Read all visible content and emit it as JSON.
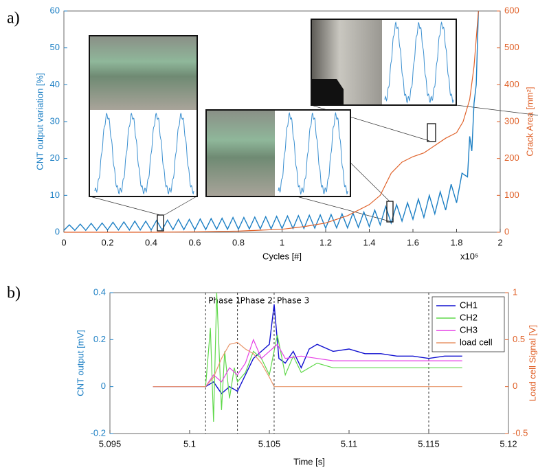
{
  "chart_data": [
    {
      "type": "line",
      "panel_label": "a)",
      "xlabel": "Cycles [#]",
      "ylabel": "CNT output variation [%]",
      "y2label": "Crack Area [mm²]",
      "x_multiplier": "x10⁵",
      "xlim": [
        0,
        2
      ],
      "xticks": [
        0,
        0.2,
        0.4,
        0.6,
        0.8,
        1,
        1.2,
        1.4,
        1.6,
        1.8,
        2
      ],
      "ylim": [
        0,
        60
      ],
      "yticks": [
        0,
        10,
        20,
        30,
        40,
        50,
        60
      ],
      "y2lim": [
        0,
        600
      ],
      "y2ticks": [
        0,
        100,
        200,
        300,
        400,
        500,
        600
      ],
      "series": [
        {
          "color": "#1c7fc4",
          "x": [
            0,
            0.025,
            0.05,
            0.075,
            0.1,
            0.125,
            0.15,
            0.175,
            0.2,
            0.225,
            0.25,
            0.275,
            0.3,
            0.325,
            0.35,
            0.375,
            0.4,
            0.425,
            0.45,
            0.475,
            0.5,
            0.525,
            0.55,
            0.575,
            0.6,
            0.625,
            0.65,
            0.675,
            0.7,
            0.725,
            0.75,
            0.775,
            0.8,
            0.825,
            0.85,
            0.875,
            0.9,
            0.925,
            0.95,
            0.975,
            1.0,
            1.025,
            1.05,
            1.075,
            1.1,
            1.125,
            1.15,
            1.175,
            1.2,
            1.225,
            1.25,
            1.275,
            1.3,
            1.325,
            1.35,
            1.375,
            1.4,
            1.425,
            1.45,
            1.475,
            1.5,
            1.525,
            1.55,
            1.575,
            1.6,
            1.625,
            1.65,
            1.675,
            1.7,
            1.725,
            1.75,
            1.775,
            1.8,
            1.825,
            1.85,
            1.86,
            1.87,
            1.88,
            1.89,
            1.9
          ],
          "values": [
            0.5,
            2,
            0.5,
            2.2,
            0.5,
            2.4,
            0.5,
            2.5,
            0.6,
            2.7,
            0.6,
            2.8,
            0.6,
            3,
            0.6,
            3,
            0.6,
            3.2,
            0.6,
            3.3,
            0.7,
            3.5,
            0.7,
            3.5,
            0.7,
            3.6,
            0.7,
            3.7,
            0.8,
            3.8,
            0.8,
            4,
            0.8,
            4,
            0.9,
            4.1,
            0.9,
            4.2,
            0.9,
            4.3,
            1,
            4.4,
            1,
            4.5,
            1,
            4.6,
            1.1,
            4.7,
            1.1,
            4.8,
            1.2,
            5,
            1.2,
            5.2,
            1.3,
            5.5,
            1.5,
            6,
            2,
            7,
            2.5,
            7.5,
            3,
            8,
            3.5,
            9,
            4,
            10,
            5,
            11,
            6,
            13,
            8,
            16,
            15,
            26,
            22,
            35,
            40,
            60
          ]
        },
        {
          "color": "#e0622a",
          "axis": "y2",
          "x": [
            0,
            0.4,
            0.6,
            0.8,
            1.0,
            1.1,
            1.2,
            1.3,
            1.4,
            1.45,
            1.5,
            1.55,
            1.6,
            1.65,
            1.7,
            1.75,
            1.8,
            1.83,
            1.86,
            1.88,
            1.9
          ],
          "values": [
            0,
            0,
            1,
            3,
            8,
            15,
            25,
            45,
            75,
            100,
            160,
            190,
            205,
            215,
            235,
            255,
            270,
            300,
            360,
            450,
            600
          ]
        }
      ]
    },
    {
      "type": "line",
      "panel_label": "b)",
      "xlabel": "Time [s]",
      "ylabel": "CNT output [mV]",
      "y2label": "Load cell Signal [V]",
      "xlim": [
        5.095,
        5.12
      ],
      "xticks": [
        5.095,
        5.1,
        5.105,
        5.11,
        5.115,
        5.12
      ],
      "ylim": [
        -0.2,
        0.4
      ],
      "yticks": [
        -0.2,
        0,
        0.2,
        0.4
      ],
      "y2lim": [
        -0.5,
        1
      ],
      "y2ticks": [
        -0.5,
        0,
        0.5,
        1
      ],
      "vlines": [
        5.101,
        5.103,
        5.1053,
        5.115
      ],
      "annotations": [
        "Phase 1",
        "Phase 2",
        "Phase 3"
      ],
      "legend": "upper right",
      "series": [
        {
          "name": "CH1",
          "color": "#1010d0",
          "x": [
            5.0977,
            5.101,
            5.1015,
            5.102,
            5.1025,
            5.103,
            5.1035,
            5.104,
            5.1045,
            5.105,
            5.1053,
            5.1056,
            5.106,
            5.1065,
            5.107,
            5.1075,
            5.108,
            5.109,
            5.11,
            5.111,
            5.112,
            5.113,
            5.114,
            5.115,
            5.116,
            5.1171
          ],
          "values": [
            0,
            0,
            0.02,
            -0.03,
            0,
            -0.02,
            0.05,
            0.12,
            0.15,
            0.18,
            0.35,
            0.12,
            0.1,
            0.15,
            0.08,
            0.16,
            0.18,
            0.15,
            0.16,
            0.14,
            0.14,
            0.13,
            0.13,
            0.12,
            0.13,
            0.13
          ]
        },
        {
          "name": "CH2",
          "color": "#5fd84a",
          "x": [
            5.0977,
            5.101,
            5.1013,
            5.1015,
            5.1017,
            5.102,
            5.1022,
            5.1025,
            5.1028,
            5.103,
            5.1035,
            5.104,
            5.1045,
            5.105,
            5.1055,
            5.106,
            5.1065,
            5.107,
            5.108,
            5.109,
            5.11,
            5.1171
          ],
          "values": [
            0,
            0,
            0.25,
            -0.15,
            0.4,
            -0.1,
            0.15,
            -0.05,
            0.08,
            0.02,
            0.06,
            0.15,
            0.12,
            0.05,
            0.22,
            0.05,
            0.13,
            0.06,
            0.1,
            0.08,
            0.08,
            0.08
          ]
        },
        {
          "name": "CH3",
          "color": "#e640e6",
          "x": [
            5.0977,
            5.101,
            5.1015,
            5.102,
            5.1025,
            5.103,
            5.1035,
            5.104,
            5.1045,
            5.105,
            5.1055,
            5.106,
            5.107,
            5.108,
            5.109,
            5.11,
            5.1171
          ],
          "values": [
            0,
            0,
            0.05,
            0.02,
            0.08,
            0.05,
            0.1,
            0.2,
            0.12,
            0.15,
            0.18,
            0.12,
            0.13,
            0.12,
            0.11,
            0.11,
            0.11
          ]
        },
        {
          "name": "load cell",
          "color": "#e8956a",
          "axis": "y2",
          "x": [
            5.0977,
            5.101,
            5.1015,
            5.102,
            5.1025,
            5.103,
            5.1035,
            5.104,
            5.1045,
            5.105,
            5.1053,
            5.106,
            5.1171
          ],
          "values": [
            0,
            0,
            0.1,
            0.3,
            0.45,
            0.47,
            0.4,
            0.35,
            0.25,
            0.1,
            0,
            0,
            0
          ]
        }
      ]
    }
  ]
}
